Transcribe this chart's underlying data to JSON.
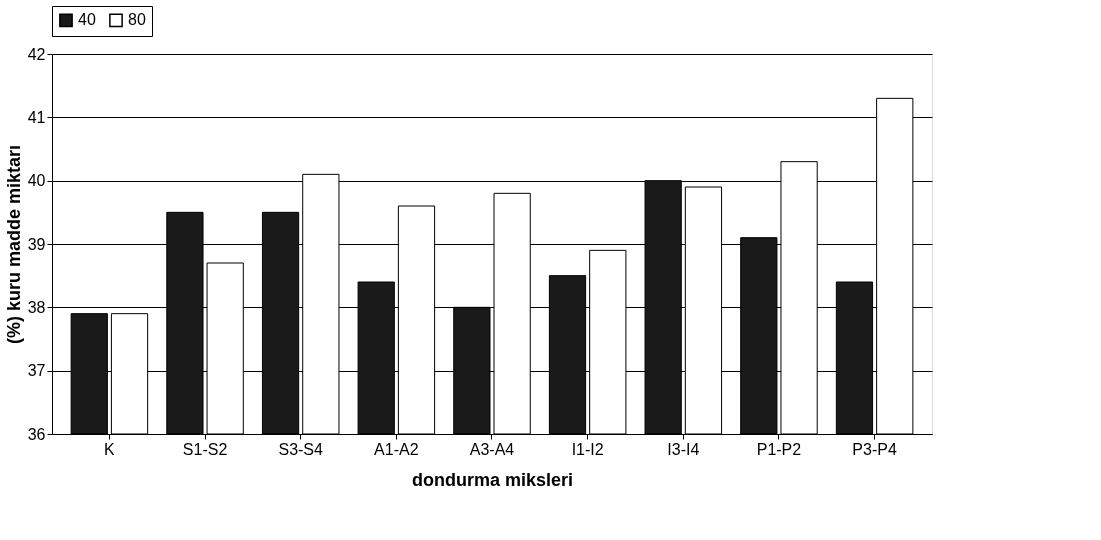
{
  "chart_data": {
    "type": "bar",
    "xlabel": "dondurma miksleri",
    "ylabel": "(%) kuru madde miktarı",
    "categories": [
      "K",
      "S1-S2",
      "S3-S4",
      "A1-A2",
      "A3-A4",
      "I1-I2",
      "I3-I4",
      "P1-P2",
      "P3-P4"
    ],
    "series": [
      {
        "name": "40",
        "color": "#1a1a1a",
        "values": [
          37.9,
          39.5,
          39.5,
          38.4,
          38.0,
          38.5,
          40.0,
          39.1,
          38.4
        ]
      },
      {
        "name": "80",
        "color": "#ffffff",
        "values": [
          37.9,
          38.7,
          40.1,
          39.6,
          39.8,
          38.9,
          39.9,
          40.3,
          41.3
        ]
      }
    ],
    "ylim": [
      36,
      42
    ],
    "yticks": [
      36,
      37,
      38,
      39,
      40,
      41,
      42
    ],
    "grid": "y",
    "legend": "top"
  }
}
